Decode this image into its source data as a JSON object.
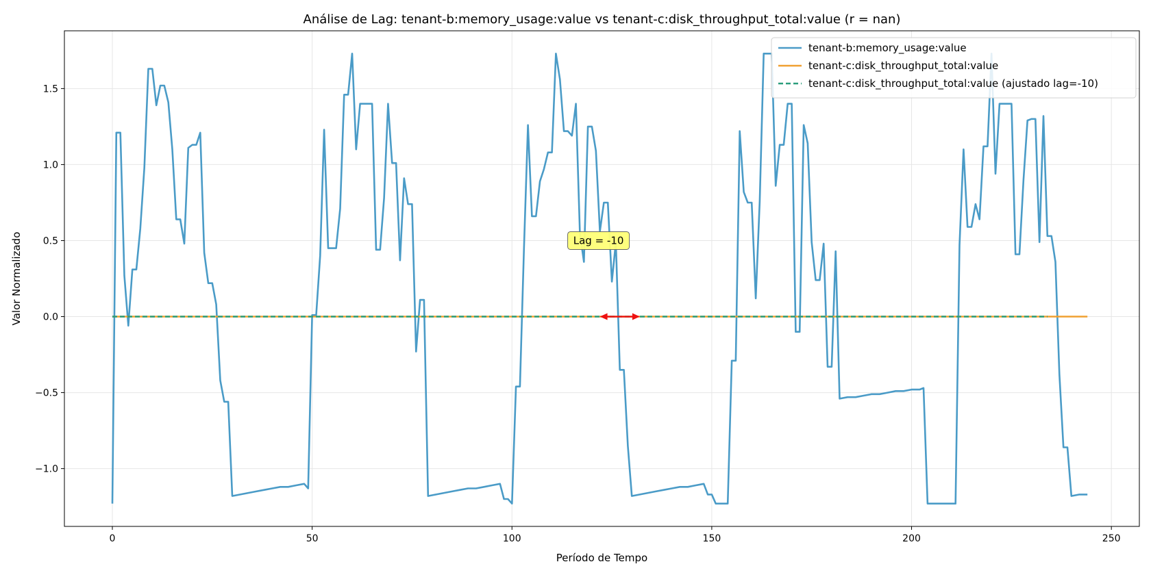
{
  "chart_data": {
    "type": "line",
    "title": "Análise de Lag: tenant-b:memory_usage:value vs tenant-c:disk_throughput_total:value (r = nan)",
    "xlabel": "Período de Tempo",
    "ylabel": "Valor Normalizado",
    "xlim": [
      -12,
      257
    ],
    "ylim": [
      -1.38,
      1.88
    ],
    "xticks": [
      0,
      50,
      100,
      150,
      200,
      250
    ],
    "yticks": [
      -1.0,
      -0.5,
      0.0,
      0.5,
      1.0,
      1.5
    ],
    "xtick_labels": [
      "0",
      "50",
      "100",
      "150",
      "200",
      "250"
    ],
    "ytick_labels": [
      "−1.0",
      "−0.5",
      "0.0",
      "0.5",
      "1.0",
      "1.5"
    ],
    "grid": true,
    "legend_position": "top-right",
    "series": [
      {
        "name": "tenant-b:memory_usage:value",
        "color": "#4a9bc7",
        "style": "solid",
        "points": [
          [
            0,
            -1.23
          ],
          [
            1,
            1.21
          ],
          [
            2,
            1.21
          ],
          [
            3,
            0.27
          ],
          [
            4,
            -0.06
          ],
          [
            5,
            0.31
          ],
          [
            6,
            0.31
          ],
          [
            7,
            0.58
          ],
          [
            8,
            0.98
          ],
          [
            9,
            1.63
          ],
          [
            10,
            1.63
          ],
          [
            11,
            1.39
          ],
          [
            12,
            1.52
          ],
          [
            13,
            1.52
          ],
          [
            14,
            1.41
          ],
          [
            15,
            1.1
          ],
          [
            16,
            0.64
          ],
          [
            17,
            0.64
          ],
          [
            18,
            0.48
          ],
          [
            19,
            1.11
          ],
          [
            20,
            1.13
          ],
          [
            21,
            1.13
          ],
          [
            22,
            1.21
          ],
          [
            23,
            0.42
          ],
          [
            24,
            0.22
          ],
          [
            25,
            0.22
          ],
          [
            26,
            0.08
          ],
          [
            27,
            -0.42
          ],
          [
            28,
            -0.56
          ],
          [
            29,
            -0.56
          ],
          [
            30,
            -1.18
          ],
          [
            32,
            -1.17
          ],
          [
            34,
            -1.16
          ],
          [
            36,
            -1.15
          ],
          [
            38,
            -1.14
          ],
          [
            40,
            -1.13
          ],
          [
            42,
            -1.12
          ],
          [
            44,
            -1.12
          ],
          [
            46,
            -1.11
          ],
          [
            48,
            -1.1
          ],
          [
            49,
            -1.13
          ],
          [
            50,
            0.01
          ],
          [
            51,
            0.01
          ],
          [
            52,
            0.4
          ],
          [
            53,
            1.23
          ],
          [
            54,
            0.45
          ],
          [
            55,
            0.45
          ],
          [
            56,
            0.45
          ],
          [
            57,
            0.71
          ],
          [
            58,
            1.46
          ],
          [
            59,
            1.46
          ],
          [
            60,
            1.73
          ],
          [
            61,
            1.1
          ],
          [
            62,
            1.4
          ],
          [
            63,
            1.4
          ],
          [
            64,
            1.4
          ],
          [
            65,
            1.4
          ],
          [
            66,
            0.44
          ],
          [
            67,
            0.44
          ],
          [
            68,
            0.78
          ],
          [
            69,
            1.4
          ],
          [
            70,
            1.01
          ],
          [
            71,
            1.01
          ],
          [
            72,
            0.37
          ],
          [
            73,
            0.91
          ],
          [
            74,
            0.74
          ],
          [
            75,
            0.74
          ],
          [
            76,
            -0.23
          ],
          [
            77,
            0.11
          ],
          [
            78,
            0.11
          ],
          [
            79,
            -1.18
          ],
          [
            81,
            -1.17
          ],
          [
            83,
            -1.16
          ],
          [
            85,
            -1.15
          ],
          [
            87,
            -1.14
          ],
          [
            89,
            -1.13
          ],
          [
            91,
            -1.13
          ],
          [
            93,
            -1.12
          ],
          [
            95,
            -1.11
          ],
          [
            97,
            -1.1
          ],
          [
            98,
            -1.2
          ],
          [
            99,
            -1.2
          ],
          [
            100,
            -1.23
          ],
          [
            101,
            -0.46
          ],
          [
            102,
            -0.46
          ],
          [
            103,
            0.45
          ],
          [
            104,
            1.26
          ],
          [
            105,
            0.66
          ],
          [
            106,
            0.66
          ],
          [
            107,
            0.89
          ],
          [
            108,
            0.97
          ],
          [
            109,
            1.08
          ],
          [
            110,
            1.08
          ],
          [
            111,
            1.73
          ],
          [
            112,
            1.56
          ],
          [
            113,
            1.22
          ],
          [
            114,
            1.22
          ],
          [
            115,
            1.19
          ],
          [
            116,
            1.4
          ],
          [
            117,
            0.55
          ],
          [
            118,
            0.36
          ],
          [
            119,
            1.25
          ],
          [
            120,
            1.25
          ],
          [
            121,
            1.09
          ],
          [
            122,
            0.56
          ],
          [
            123,
            0.75
          ],
          [
            124,
            0.75
          ],
          [
            125,
            0.23
          ],
          [
            126,
            0.49
          ],
          [
            127,
            -0.35
          ],
          [
            128,
            -0.35
          ],
          [
            129,
            -0.85
          ],
          [
            130,
            -1.18
          ],
          [
            132,
            -1.17
          ],
          [
            134,
            -1.16
          ],
          [
            136,
            -1.15
          ],
          [
            138,
            -1.14
          ],
          [
            140,
            -1.13
          ],
          [
            142,
            -1.12
          ],
          [
            144,
            -1.12
          ],
          [
            146,
            -1.11
          ],
          [
            148,
            -1.1
          ],
          [
            149,
            -1.17
          ],
          [
            150,
            -1.17
          ],
          [
            151,
            -1.23
          ],
          [
            152,
            -1.23
          ],
          [
            153,
            -1.23
          ],
          [
            154,
            -1.23
          ],
          [
            155,
            -0.29
          ],
          [
            156,
            -0.29
          ],
          [
            157,
            1.22
          ],
          [
            158,
            0.82
          ],
          [
            159,
            0.75
          ],
          [
            160,
            0.75
          ],
          [
            161,
            0.12
          ],
          [
            162,
            0.76
          ],
          [
            163,
            1.73
          ],
          [
            164,
            1.73
          ],
          [
            165,
            1.73
          ],
          [
            166,
            0.86
          ],
          [
            167,
            1.13
          ],
          [
            168,
            1.13
          ],
          [
            169,
            1.4
          ],
          [
            170,
            1.4
          ],
          [
            171,
            -0.1
          ],
          [
            172,
            -0.1
          ],
          [
            173,
            1.26
          ],
          [
            174,
            1.14
          ],
          [
            175,
            0.49
          ],
          [
            176,
            0.24
          ],
          [
            177,
            0.24
          ],
          [
            178,
            0.48
          ],
          [
            179,
            -0.33
          ],
          [
            180,
            -0.33
          ],
          [
            181,
            0.43
          ],
          [
            182,
            -0.54
          ],
          [
            184,
            -0.53
          ],
          [
            186,
            -0.53
          ],
          [
            188,
            -0.52
          ],
          [
            190,
            -0.51
          ],
          [
            192,
            -0.51
          ],
          [
            194,
            -0.5
          ],
          [
            196,
            -0.49
          ],
          [
            198,
            -0.49
          ],
          [
            200,
            -0.48
          ],
          [
            202,
            -0.48
          ],
          [
            203,
            -0.47
          ],
          [
            204,
            -1.23
          ],
          [
            206,
            -1.23
          ],
          [
            208,
            -1.23
          ],
          [
            210,
            -1.23
          ],
          [
            211,
            -1.23
          ],
          [
            212,
            0.47
          ],
          [
            213,
            1.1
          ],
          [
            214,
            0.59
          ],
          [
            215,
            0.59
          ],
          [
            216,
            0.74
          ],
          [
            217,
            0.64
          ],
          [
            218,
            1.12
          ],
          [
            219,
            1.12
          ],
          [
            220,
            1.73
          ],
          [
            221,
            0.94
          ],
          [
            222,
            1.4
          ],
          [
            223,
            1.4
          ],
          [
            224,
            1.4
          ],
          [
            225,
            1.4
          ],
          [
            226,
            0.41
          ],
          [
            227,
            0.41
          ],
          [
            228,
            0.9
          ],
          [
            229,
            1.29
          ],
          [
            230,
            1.3
          ],
          [
            231,
            1.3
          ],
          [
            232,
            0.49
          ],
          [
            233,
            1.32
          ],
          [
            234,
            0.53
          ],
          [
            235,
            0.53
          ],
          [
            236,
            0.36
          ],
          [
            237,
            -0.38
          ],
          [
            238,
            -0.86
          ],
          [
            239,
            -0.86
          ],
          [
            240,
            -1.18
          ],
          [
            242,
            -1.17
          ],
          [
            243,
            -1.17
          ],
          [
            244,
            -1.17
          ]
        ]
      },
      {
        "name": "tenant-c:disk_throughput_total:value",
        "color": "#f0a030",
        "style": "solid",
        "points": [
          [
            0,
            0
          ],
          [
            244,
            0
          ]
        ]
      },
      {
        "name": "tenant-c:disk_throughput_total:value (ajustado lag=-10)",
        "color": "#2a9d7c",
        "style": "dashed",
        "points": [
          [
            0,
            0
          ],
          [
            234,
            0
          ]
        ]
      }
    ],
    "annotation": {
      "text": "Lag = -10",
      "text_x": 122,
      "text_y": 0.5,
      "arrow_from_x": 122,
      "arrow_to_x": 132,
      "arrow_y": 0,
      "color": "#ee1111",
      "box_color": "#ffff77"
    }
  }
}
